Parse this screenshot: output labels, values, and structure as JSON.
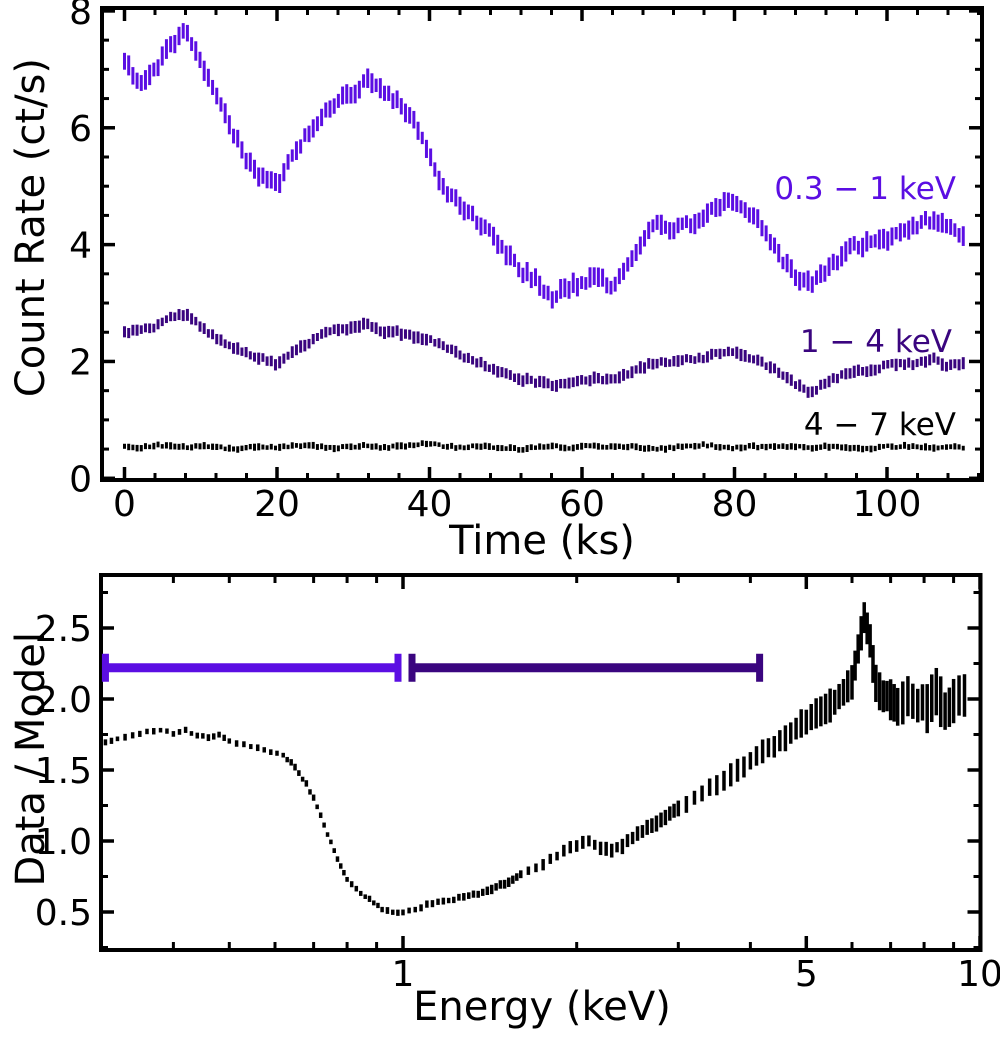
{
  "figure": {
    "background": "#ffffff",
    "axis_color": "#000000"
  },
  "chart_data": [
    {
      "id": "light_curves",
      "type": "scatter",
      "subtype": "errorbar-vertical",
      "title": "",
      "xlabel": "Time (ks)",
      "ylabel": "Count Rate (ct/s)",
      "xlim": [
        -3.2,
        112.4
      ],
      "ylim": [
        0,
        8
      ],
      "xticks": [
        0,
        20,
        40,
        60,
        80,
        100
      ],
      "xminor_step": 4,
      "yticks": [
        0,
        2,
        4,
        6,
        8
      ],
      "yminor_step": 0.5,
      "grid": false,
      "legend_position": "in-plot right, one label per band",
      "x": [
        0,
        2,
        4,
        6,
        8,
        10,
        12,
        14,
        16,
        18,
        20,
        22,
        24,
        26,
        28,
        30,
        32,
        34,
        36,
        38,
        40,
        42,
        44,
        46,
        48,
        50,
        52,
        54,
        56,
        58,
        60,
        62,
        64,
        66,
        68,
        70,
        72,
        74,
        76,
        78,
        80,
        82,
        84,
        86,
        88,
        90,
        92,
        94,
        96,
        98,
        100,
        102,
        104,
        106,
        108,
        110
      ],
      "series": [
        {
          "name": "0.3 − 1 keV",
          "color": "#5B0EE3",
          "yerr": 0.14,
          "scatter": 0.12,
          "y": [
            7.1,
            6.8,
            7.0,
            7.4,
            7.7,
            7.15,
            6.55,
            6.0,
            5.45,
            5.15,
            5.0,
            5.5,
            5.9,
            6.25,
            6.45,
            6.6,
            6.85,
            6.6,
            6.45,
            6.1,
            5.5,
            4.95,
            4.7,
            4.45,
            4.2,
            3.85,
            3.55,
            3.4,
            3.1,
            3.25,
            3.35,
            3.45,
            3.25,
            3.7,
            4.1,
            4.4,
            4.25,
            4.35,
            4.5,
            4.65,
            4.75,
            4.55,
            4.25,
            3.8,
            3.45,
            3.3,
            3.55,
            3.8,
            4.0,
            4.0,
            4.1,
            4.25,
            4.35,
            4.45,
            4.3,
            4.15
          ]
        },
        {
          "name": "1 − 4 keV",
          "color": "#3A057F",
          "yerr": 0.085,
          "scatter": 0.06,
          "y": [
            2.5,
            2.55,
            2.6,
            2.75,
            2.8,
            2.6,
            2.4,
            2.25,
            2.15,
            2.05,
            1.95,
            2.15,
            2.3,
            2.5,
            2.55,
            2.55,
            2.65,
            2.5,
            2.5,
            2.4,
            2.4,
            2.25,
            2.1,
            2.0,
            1.9,
            1.8,
            1.7,
            1.65,
            1.6,
            1.6,
            1.7,
            1.7,
            1.7,
            1.8,
            1.9,
            2.0,
            2.0,
            2.05,
            2.05,
            2.15,
            2.15,
            2.05,
            1.95,
            1.8,
            1.6,
            1.45,
            1.65,
            1.75,
            1.85,
            1.85,
            1.95,
            1.95,
            1.95,
            2.05,
            1.9,
            2.0
          ]
        },
        {
          "name": "4 − 7 keV",
          "color": "#000000",
          "yerr": 0.05,
          "scatter": 0.035,
          "y": [
            0.55,
            0.52,
            0.57,
            0.55,
            0.53,
            0.56,
            0.54,
            0.5,
            0.52,
            0.55,
            0.53,
            0.55,
            0.57,
            0.54,
            0.52,
            0.55,
            0.56,
            0.53,
            0.55,
            0.57,
            0.6,
            0.55,
            0.53,
            0.56,
            0.54,
            0.52,
            0.5,
            0.53,
            0.55,
            0.52,
            0.54,
            0.56,
            0.53,
            0.55,
            0.52,
            0.5,
            0.53,
            0.55,
            0.57,
            0.54,
            0.52,
            0.55,
            0.53,
            0.56,
            0.54,
            0.52,
            0.55,
            0.53,
            0.5,
            0.52,
            0.54,
            0.55,
            0.53,
            0.52,
            0.54,
            0.53
          ]
        }
      ]
    },
    {
      "id": "ratio_spectrum",
      "type": "scatter",
      "subtype": "errorbar-vertical",
      "title": "",
      "xlabel": "Energy (keV)",
      "ylabel": "Data / Model",
      "xscale": "log",
      "xlim": [
        0.3,
        10
      ],
      "ylim": [
        0.23,
        2.87
      ],
      "xticks": [
        1,
        5,
        10
      ],
      "xtick_labels": [
        "1",
        "5",
        "10"
      ],
      "xminors": [
        0.4,
        0.5,
        0.6,
        0.7,
        0.8,
        0.9,
        2,
        3,
        4,
        6,
        7,
        8,
        9
      ],
      "yticks": [
        0.5,
        1.0,
        1.5,
        2.0,
        2.5
      ],
      "ytick_labels": [
        "0.5",
        "1.0",
        "1.5",
        "2.0",
        "2.5"
      ],
      "yminors": [
        0.25,
        0.75,
        1.25,
        1.75,
        2.25,
        2.75
      ],
      "grid": false,
      "point_color": "#000000",
      "x": [
        0.305,
        0.32,
        0.34,
        0.36,
        0.38,
        0.4,
        0.42,
        0.44,
        0.46,
        0.48,
        0.5,
        0.53,
        0.56,
        0.59,
        0.62,
        0.64,
        0.66,
        0.68,
        0.7,
        0.72,
        0.74,
        0.76,
        0.78,
        0.8,
        0.83,
        0.86,
        0.89,
        0.92,
        0.96,
        1.0,
        1.05,
        1.1,
        1.15,
        1.2,
        1.25,
        1.3,
        1.35,
        1.4,
        1.45,
        1.5,
        1.55,
        1.6,
        1.7,
        1.8,
        1.9,
        2.0,
        2.1,
        2.2,
        2.3,
        2.4,
        2.5,
        2.6,
        2.7,
        2.8,
        2.9,
        3.0,
        3.2,
        3.4,
        3.6,
        3.8,
        4.0,
        4.2,
        4.4,
        4.6,
        4.8,
        5.0,
        5.2,
        5.4,
        5.6,
        5.8,
        6.0,
        6.15,
        6.3,
        6.45,
        6.6,
        6.8,
        7.0,
        7.2,
        7.5,
        7.8,
        8.1,
        8.4,
        8.7,
        9.0,
        9.4
      ],
      "y": [
        1.7,
        1.72,
        1.75,
        1.77,
        1.78,
        1.76,
        1.78,
        1.74,
        1.73,
        1.75,
        1.7,
        1.68,
        1.66,
        1.63,
        1.6,
        1.55,
        1.48,
        1.4,
        1.3,
        1.18,
        1.05,
        0.93,
        0.82,
        0.73,
        0.66,
        0.61,
        0.57,
        0.52,
        0.5,
        0.5,
        0.52,
        0.55,
        0.57,
        0.58,
        0.6,
        0.62,
        0.63,
        0.65,
        0.68,
        0.7,
        0.73,
        0.76,
        0.81,
        0.87,
        0.93,
        0.97,
        1.0,
        0.95,
        0.93,
        0.97,
        1.02,
        1.07,
        1.11,
        1.15,
        1.19,
        1.22,
        1.3,
        1.37,
        1.43,
        1.5,
        1.56,
        1.62,
        1.67,
        1.72,
        1.78,
        1.85,
        1.9,
        1.94,
        1.99,
        2.05,
        2.12,
        2.35,
        2.58,
        2.4,
        2.1,
        2.02,
        2.0,
        1.96,
        2.02,
        1.97,
        1.95,
        2.04,
        1.92,
        1.98,
        2.03
      ],
      "bands": [
        {
          "label": "0.3 − 1 keV band",
          "x_from": 0.3,
          "x_to": 1.0,
          "y": 2.22,
          "color": "#5B0EE3"
        },
        {
          "label": "1 − 4 keV band",
          "x_from": 1.0,
          "x_to": 4.15,
          "y": 2.22,
          "color": "#3A057F"
        }
      ]
    }
  ]
}
